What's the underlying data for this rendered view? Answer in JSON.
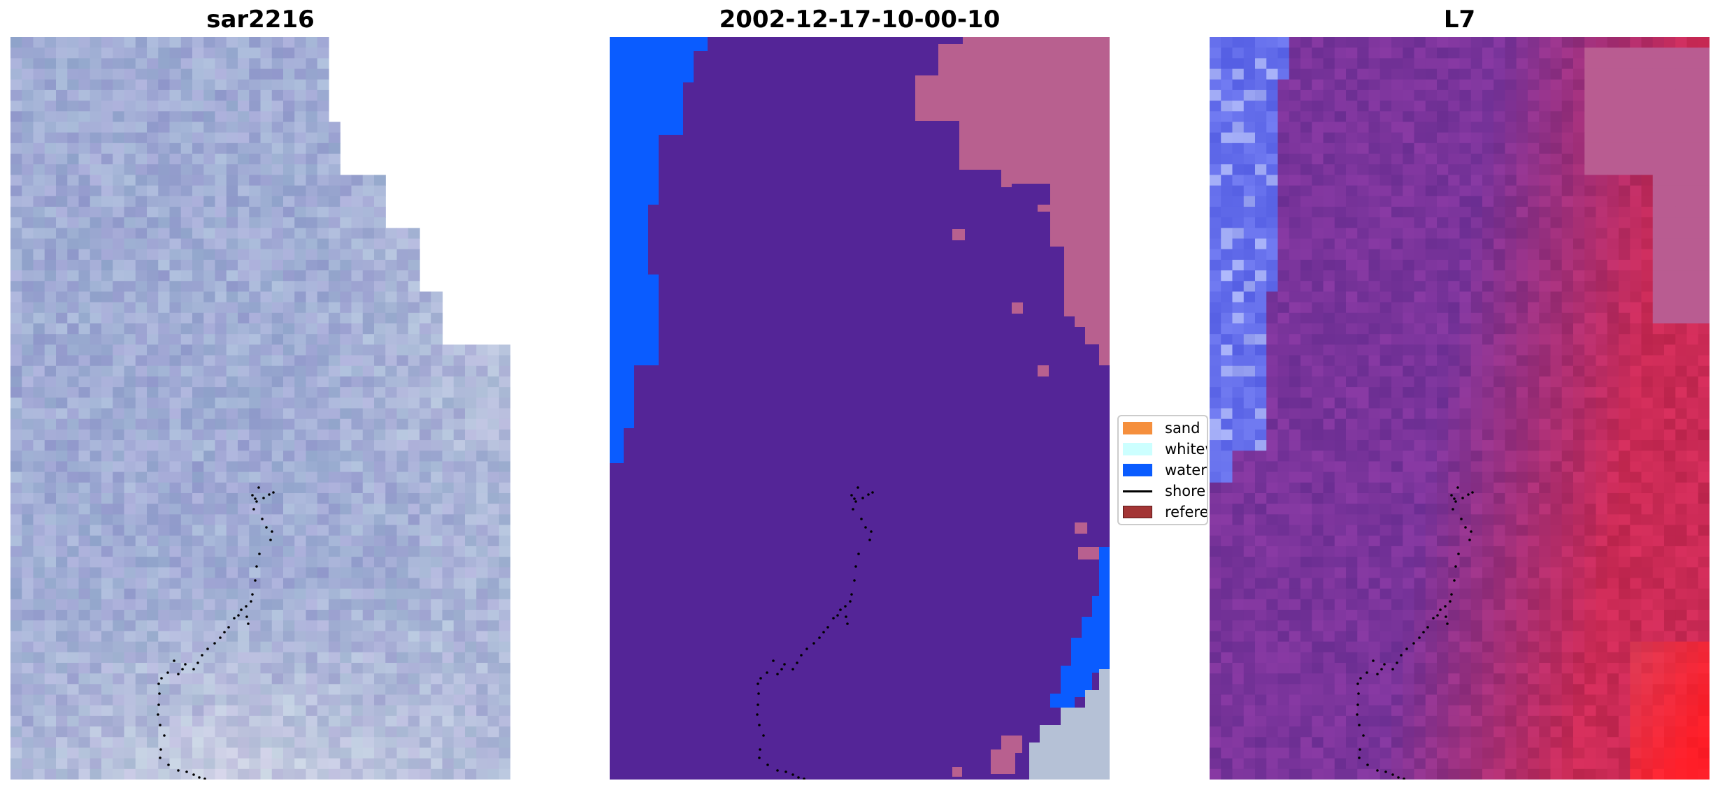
{
  "panels": [
    {
      "title": "sar2216"
    },
    {
      "title": "2002-12-17-10-00-10"
    },
    {
      "title": "L7"
    }
  ],
  "legend": {
    "entries": [
      {
        "label": "sand",
        "icon": "patch",
        "color": "#f58f3d"
      },
      {
        "label": "whitewater",
        "icon": "patch",
        "color": "#ccffff"
      },
      {
        "label": "water",
        "icon": "patch",
        "color": "#0a5cff"
      },
      {
        "label": "shoreline",
        "icon": "line",
        "color": "#000000"
      },
      {
        "label": "reference",
        "icon": "patch",
        "color": "#a33535"
      }
    ]
  },
  "colors": {
    "sar_base": "#a8b0d4",
    "class_other": "#542597",
    "class_water": "#0a5cff",
    "class_land": "#b8608f",
    "l7_purple": "#7a3598",
    "l7_red": "#c62f5a",
    "l7_blue": "#6f73ef",
    "shoreline": "#000000"
  }
}
